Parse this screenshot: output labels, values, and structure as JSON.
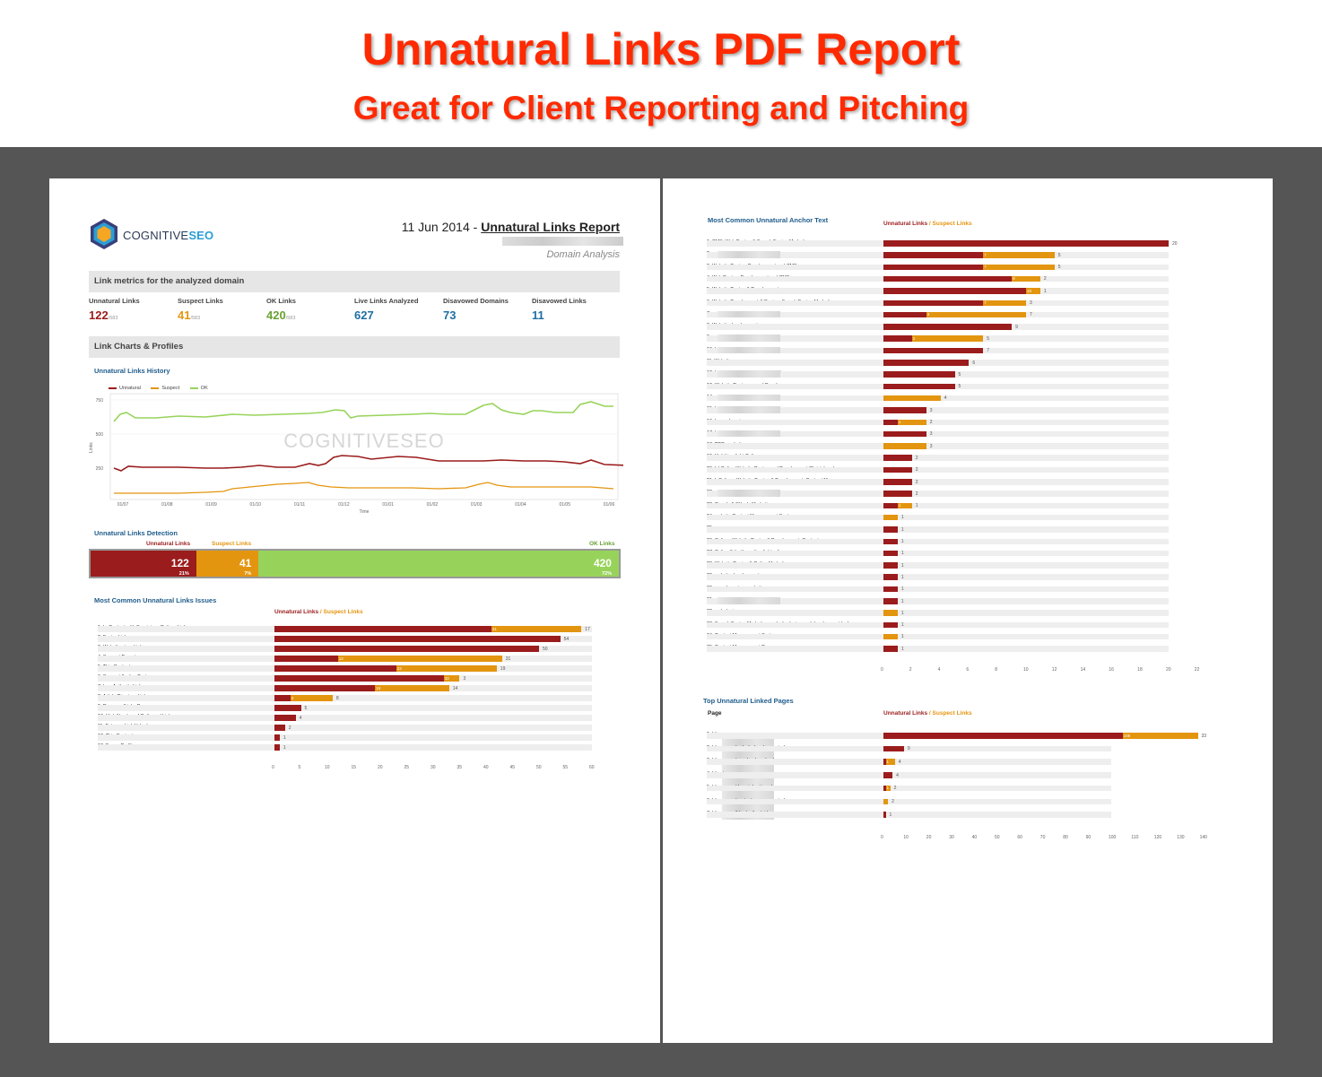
{
  "banner": {
    "title": "Unnatural Links PDF Report",
    "subtitle": "Great for Client Reporting and Pitching"
  },
  "colors": {
    "unnatural": "#9b1c1c",
    "suspect": "#e3950f",
    "ok": "#97d35a",
    "blue": "#1f5c8c"
  },
  "left": {
    "logo": {
      "part1": "COGNITIVE",
      "part2": "SEO"
    },
    "report_date": "11 Jun 2014 - ",
    "report_title": "Unnatural Links Report",
    "domain_analysis": "Domain Analysis",
    "metrics_header": "Link metrics for the analyzed domain",
    "metrics": [
      {
        "label": "Unnatural Links",
        "value": "122",
        "total": "/583",
        "color": "#9b1c1c"
      },
      {
        "label": "Suspect Links",
        "value": "41",
        "total": "/583",
        "color": "#e3950f"
      },
      {
        "label": "OK Links",
        "value": "420",
        "total": "/583",
        "color": "#6aa232"
      },
      {
        "label": "Live Links Analyzed",
        "value": "627",
        "total": "",
        "color": "#1f6fa3"
      },
      {
        "label": "Disavowed Domains",
        "value": "73",
        "total": "",
        "color": "#1f6fa3"
      },
      {
        "label": "Disavowed Links",
        "value": "11",
        "total": "",
        "color": "#1f6fa3"
      }
    ],
    "charts_header": "Link Charts & Profiles",
    "history": {
      "title": "Unnatural Links History",
      "legend": [
        "Unnatural",
        "Suspect",
        "OK"
      ],
      "yticks": [
        "750",
        "500",
        "250"
      ],
      "xticks": [
        "01/07",
        "01/08",
        "01/09",
        "01/10",
        "01/11",
        "01/12",
        "01/01",
        "01/02",
        "01/03",
        "01/04",
        "01/05",
        "01/06"
      ],
      "ylabel": "Links",
      "xlabel": "Time",
      "watermark": "COGNITIVESEO"
    },
    "detection": {
      "title": "Unnatural Links Detection",
      "labels": [
        "Unnatural Links",
        "Suspect Links",
        "OK Links"
      ],
      "segments": [
        {
          "value": "122",
          "pct": "21%",
          "share": 0.21
        },
        {
          "value": "41",
          "pct": "7%",
          "share": 0.07
        },
        {
          "value": "420",
          "pct": "72%",
          "share": 0.72
        }
      ]
    },
    "issues": {
      "title": "Most Common Unnatural Links Issues",
      "legend_u": "Unnatural Links",
      "legend_s": " / Suspect Links",
      "rows": [
        {
          "label": "1. In-Content with Suspicious Pattern Link",
          "u": 41,
          "s": 17
        },
        {
          "label": "2. Footer Link",
          "u": 54,
          "s": 0
        },
        {
          "label": "3. Web-directory Link",
          "u": 50,
          "s": 0
        },
        {
          "label": "4. Suspect Domain",
          "u": 12,
          "s": 31
        },
        {
          "label": "5. Thin Content",
          "u": 23,
          "s": 19
        },
        {
          "label": "6. Suspect Anchor Text",
          "u": 32,
          "s": 3
        },
        {
          "label": "7. Low Authority Link",
          "u": 19,
          "s": 14
        },
        {
          "label": "8. Article Directory Link",
          "u": 3,
          "s": 8
        },
        {
          "label": "9. Resource/Links Page",
          "u": 5,
          "s": 0
        },
        {
          "label": "10. High Number of Outbound Links",
          "u": 4,
          "s": 0
        },
        {
          "label": "11. Extreme Link Velocity",
          "u": 2,
          "s": 0
        },
        {
          "label": "12. Thin Content",
          "u": 1,
          "s": 0
        },
        {
          "label": "13. Forum Profile",
          "u": 1,
          "s": 0
        }
      ],
      "xticks": [
        "0",
        "5",
        "10",
        "15",
        "20",
        "25",
        "30",
        "35",
        "40",
        "45",
        "50",
        "55",
        "60"
      ]
    }
  },
  "right": {
    "anchor": {
      "title": "Most Common Unnatural Anchor Text",
      "legend_u": "Unnatural Links",
      "legend_s": " / Suspect Links",
      "rows": [
        {
          "label": "1. CMS, Web Design & Search Engine Marketing",
          "u": 20,
          "s": 0,
          "blur": 0
        },
        {
          "label": "2.",
          "u": 7,
          "s": 5,
          "blur": 1
        },
        {
          "label": "3. Website Design, Development and CMS",
          "u": 7,
          "s": 5,
          "blur": 0
        },
        {
          "label": "4. Web Design, Development and CMS",
          "u": 9,
          "s": 2,
          "blur": 0
        },
        {
          "label": "5. Website Design & Development",
          "u": 10,
          "s": 1,
          "blur": 0
        },
        {
          "label": "6. Website Development & Design, Search Engine Marketing",
          "u": 7,
          "s": 3,
          "blur": 0
        },
        {
          "label": "7.",
          "u": 3,
          "s": 7,
          "blur": 1
        },
        {
          "label": "8. Website development",
          "u": 9,
          "s": 0,
          "blur": 0
        },
        {
          "label": "9. ww",
          "u": 2,
          "s": 5,
          "blur": 1
        },
        {
          "label": "10. l",
          "u": 7,
          "s": 0,
          "blur": 1
        },
        {
          "label": "11. Website",
          "u": 6,
          "s": 0,
          "blur": 0
        },
        {
          "label": "12. l              tchurch Website Design & Online",
          "u": 5,
          "s": 0,
          "blur": 1
        },
        {
          "label": "13. Website Designers and Developers",
          "u": 5,
          "s": 0,
          "blur": 0
        },
        {
          "label": "14. ww",
          "u": 0,
          "s": 4,
          "blur": 1
        },
        {
          "label": "15. http",
          "u": 3,
          "s": 0,
          "blur": 1
        },
        {
          "label": "16. buy a domain name",
          "u": 1,
          "s": 2,
          "blur": 0
        },
        {
          "label": "17. http://                        r/",
          "u": 3,
          "s": 0,
          "blur": 1
        },
        {
          "label": "18. PPC marketing",
          "u": 0,
          "s": 3,
          "blur": 0
        },
        {
          "label": "19.  Visit Limelight Online",
          "u": 2,
          "s": 0,
          "blur": 0
        },
        {
          "label": "20. L       l Online Website Design and Development Christchurch",
          "u": 2,
          "s": 0,
          "blur": 0
        },
        {
          "label": "21. L       Online : Website Design & Development, Content Man",
          "u": 2,
          "s": 0,
          "blur": 0
        },
        {
          "label": "22.",
          "u": 2,
          "s": 0,
          "blur": 1
        },
        {
          "label": "23. Google AdWords Marketing",
          "u": 1,
          "s": 1,
          "blur": 0
        },
        {
          "label": "24. website Content Management System",
          "u": 0,
          "s": 1,
          "blur": 0
        },
        {
          "label": "25.",
          "u": 1,
          "s": 0,
          "blur": 0
        },
        {
          "label": "26.          Online : Website Design & Development, Content",
          "u": 1,
          "s": 0,
          "blur": 0
        },
        {
          "label": "27.          Online  (http://www.limelightonline.co.",
          "u": 1,
          "s": 0,
          "blur": 0
        },
        {
          "label": "28. Website Design & Online Marketing",
          "u": 1,
          "s": 0,
          "blur": 0
        },
        {
          "label": "29. website development",
          "u": 1,
          "s": 0,
          "blur": 0
        },
        {
          "label": "30. search engine marketing",
          "u": 1,
          "s": 0,
          "blur": 0
        },
        {
          "label": "31.                 co.nz",
          "u": 1,
          "s": 0,
          "blur": 1
        },
        {
          "label": "32. web design,",
          "u": 0,
          "s": 1,
          "blur": 0
        },
        {
          "label": "33. Search Engine Marketing, website design and development by L",
          "u": 1,
          "s": 0,
          "blur": 0
        },
        {
          "label": "34. Content Management System",
          "u": 0,
          "s": 1,
          "blur": 0
        },
        {
          "label": "35. Content Management Program",
          "u": 1,
          "s": 0,
          "blur": 0
        }
      ],
      "xticks": [
        "0",
        "2",
        "4",
        "6",
        "8",
        "10",
        "12",
        "14",
        "16",
        "18",
        "20",
        "22"
      ]
    },
    "pages": {
      "title": "Top Unnatural Linked Pages",
      "col": "Page",
      "legend_u": "Unnatural Links",
      "legend_s": " / Suspect Links",
      "rows": [
        {
          "label": "1. http:                         co.nz",
          "u": 105,
          "s": 33
        },
        {
          "label": "2. http:                         .co.nz/websitedevelopment.php",
          "u": 9,
          "s": 0
        },
        {
          "label": "3. http:                         .co.nz/googleadwords.php",
          "u": 1,
          "s": 4
        },
        {
          "label": "4. http:                         t",
          "u": 4,
          "s": 0
        },
        {
          "label": "5. http:                         .co.nz/domainhosting.php",
          "u": 1,
          "s": 2
        },
        {
          "label": "6. http:                         .co.nz/contentmanagement.php",
          "u": 0,
          "s": 2
        },
        {
          "label": "7. http:                         .co.nz/blog/author/aiden-rogers",
          "u": 1,
          "s": 0
        }
      ],
      "xticks": [
        "0",
        "10",
        "20",
        "30",
        "40",
        "50",
        "60",
        "70",
        "80",
        "90",
        "100",
        "110",
        "120",
        "130",
        "140"
      ]
    }
  }
}
